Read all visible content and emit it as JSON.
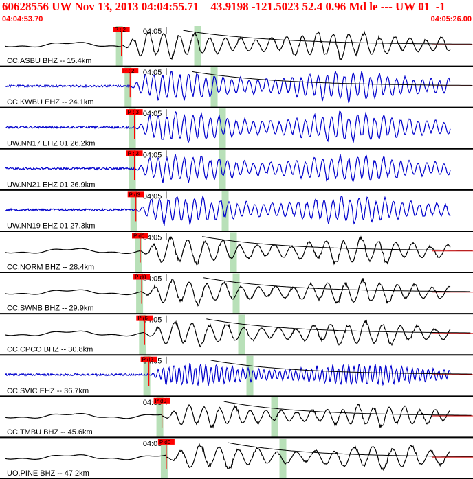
{
  "header": {
    "title": "60628556 UW Nov 13, 2013 04:04:55.71    43.9198 -121.5023 52.4 0.96 Md le --- UW 01  -1",
    "start_time": "04:04:53.70",
    "end_time": "04:05:26.00"
  },
  "colors": {
    "header_text": "#ff0000",
    "pick_flag": "#ff0000",
    "coda_line": "#cc0000",
    "window_band": "#b8e0b8",
    "trace_black": "#000000",
    "trace_blue": "#0000cc",
    "separator": "#000000"
  },
  "tick_label": "04:05",
  "panels": [
    {
      "label": "CC.ASBU BHZ -- 15.4km",
      "pick": "P d2",
      "color": "black",
      "p_time": 8.2,
      "amp": 0.55,
      "period": 1.6,
      "coda": true
    },
    {
      "label": "CC.KWBU EHZ -- 24.1km",
      "pick": "P d2",
      "color": "blue",
      "p_time": 8.8,
      "amp": 0.6,
      "period": 0.9,
      "coda": true
    },
    {
      "label": "UW.NN17 EHZ 01 26.2km",
      "pick": "P d3",
      "color": "blue",
      "p_time": 9.1,
      "amp": 0.6,
      "period": 0.9,
      "coda": false
    },
    {
      "label": "UW.NN21 EHZ 01 26.9km",
      "pick": "P d3",
      "color": "blue",
      "p_time": 9.1,
      "amp": 0.55,
      "period": 0.9,
      "coda": false
    },
    {
      "label": "UW.NN19 EHZ 01 27.3km",
      "pick": "P d3",
      "color": "blue",
      "p_time": 9.2,
      "amp": 0.55,
      "period": 0.9,
      "coda": false
    },
    {
      "label": "CC.NORM BHZ -- 28.4km",
      "pick": "P d0",
      "color": "black",
      "p_time": 9.5,
      "amp": 0.55,
      "period": 1.8,
      "coda": true
    },
    {
      "label": "CC.SWNB BHZ -- 29.9km",
      "pick": "P d0",
      "color": "black",
      "p_time": 9.6,
      "amp": 0.5,
      "period": 1.8,
      "coda": true
    },
    {
      "label": "CC.CPCO BHZ -- 30.8km",
      "pick": "P d2",
      "color": "black",
      "p_time": 9.8,
      "amp": 0.5,
      "period": 1.8,
      "coda": true
    },
    {
      "label": "CC.SVIC EHZ -- 36.7km",
      "pick": "P d2",
      "color": "blue",
      "p_time": 10.1,
      "amp": 0.45,
      "period": 0.55,
      "coda": true
    },
    {
      "label": "CC.TMBU BHZ -- 45.6km",
      "pick": "P d0",
      "color": "black",
      "p_time": 11.0,
      "amp": 0.45,
      "period": 1.6,
      "coda": true
    },
    {
      "label": "UO.PINE BHZ -- 47.2km",
      "pick": "P d0",
      "color": "black",
      "p_time": 11.3,
      "amp": 0.5,
      "period": 2.0,
      "coda": true
    }
  ]
}
